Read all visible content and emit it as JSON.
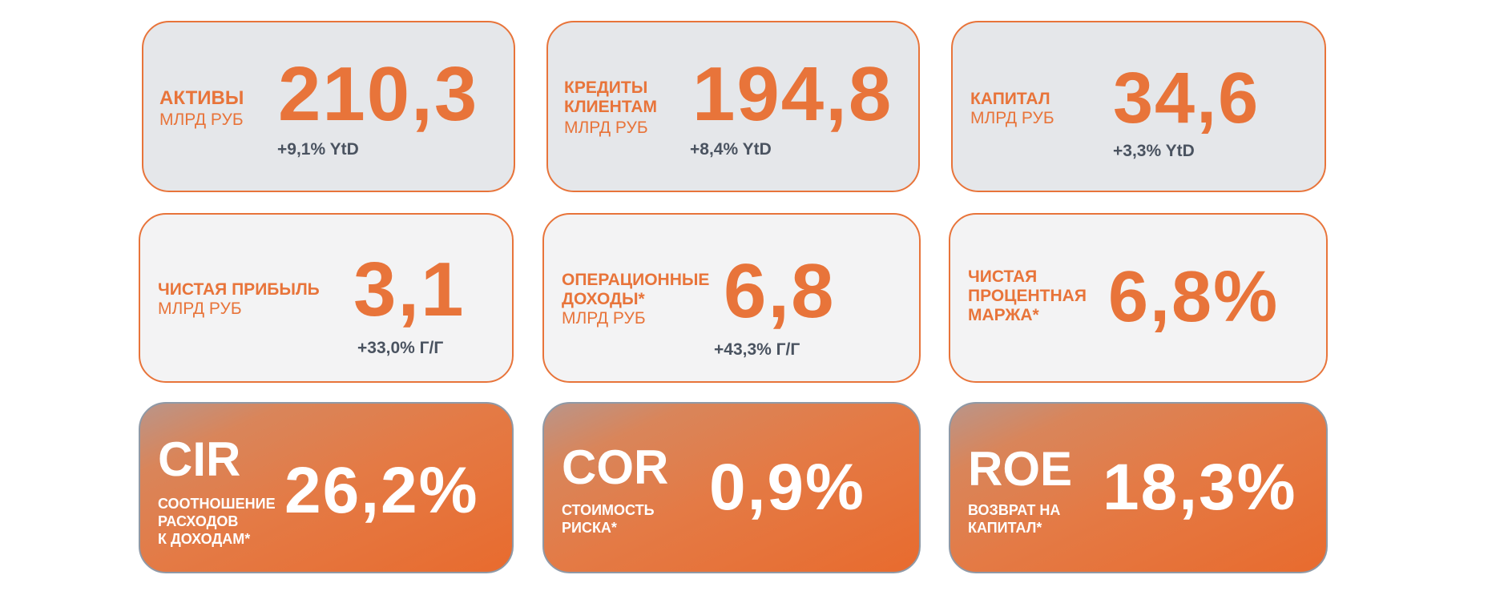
{
  "cards": [
    {
      "label": "АКТИВЫ",
      "unit": "МЛРД РУБ",
      "value": "210,3",
      "change": "+9,1% YtD"
    },
    {
      "label_line1": "КРЕДИТЫ",
      "label_line2": "КЛИЕНТАМ",
      "unit": "МЛРД РУБ",
      "value": "194,8",
      "change": "+8,4% YtD"
    },
    {
      "label": "КАПИТАЛ",
      "unit": "МЛРД РУБ",
      "value": "34,6",
      "change": "+3,3% YtD"
    },
    {
      "label": "ЧИСТАЯ ПРИБЫЛЬ",
      "unit": "МЛРД РУБ",
      "value": "3,1",
      "change": "+33,0% Г/Г"
    },
    {
      "label_line1": "ОПЕРАЦИОННЫЕ",
      "label_line2": "ДОХОДЫ*",
      "unit": "МЛРД РУБ",
      "value": "6,8",
      "change": "+43,3% Г/Г"
    },
    {
      "label_line1": "ЧИСТАЯ",
      "label_line2": "ПРОЦЕНТНАЯ",
      "label_line3": "МАРЖА*",
      "value": "6,8%"
    },
    {
      "abbr": "CIR",
      "desc_line1": "СООТНОШЕНИЕ",
      "desc_line2": "РАСХОДОВ",
      "desc_line3": "К ДОХОДАМ*",
      "value": "26,2%"
    },
    {
      "abbr": "COR",
      "desc_line1": "СТОИМОСТЬ",
      "desc_line2": "РИСКА*",
      "value": "0,9%"
    },
    {
      "abbr": "ROE",
      "desc_line1": "ВОЗВРАТ НА",
      "desc_line2": "КАПИТАЛ*",
      "value": "18,3%"
    }
  ],
  "colors": {
    "accent": "#e8743a",
    "text_dark": "#4a5360",
    "card_gray": "#e5e7ea",
    "card_light": "#f3f3f4"
  }
}
